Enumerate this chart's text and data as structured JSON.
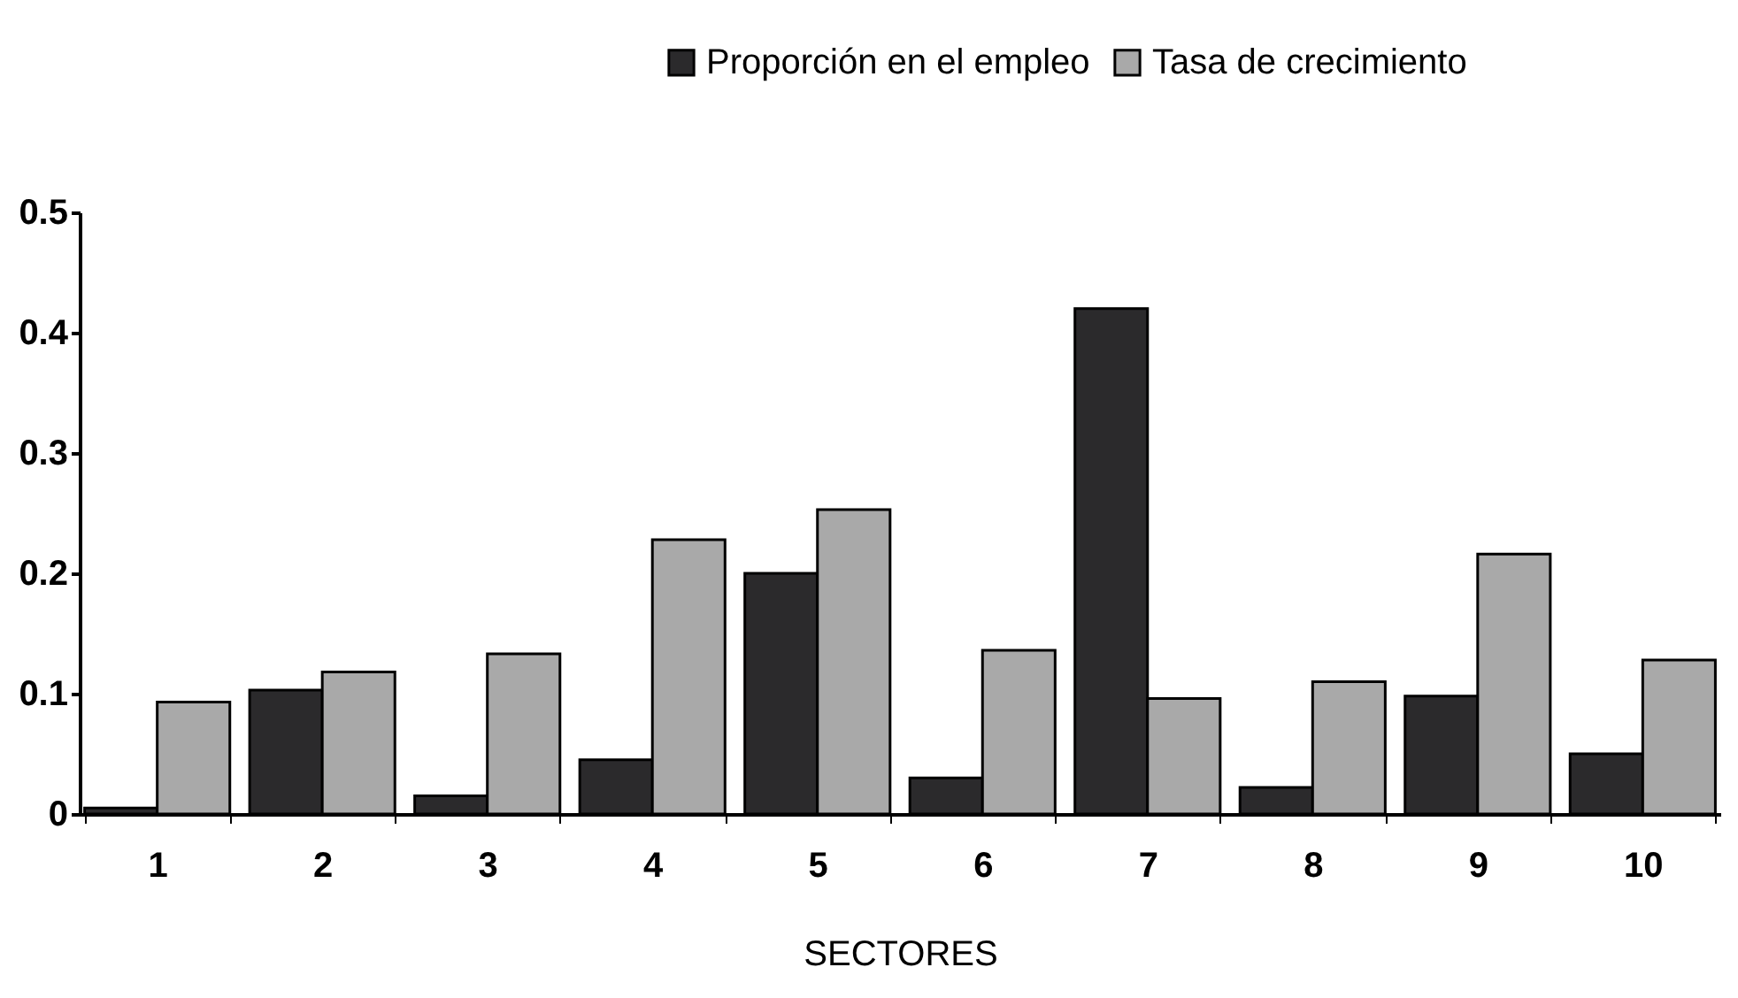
{
  "chart_data": {
    "type": "bar",
    "xlabel": "SECTORES",
    "categories": [
      "1",
      "2",
      "3",
      "4",
      "5",
      "6",
      "7",
      "8",
      "9",
      "10"
    ],
    "series": [
      {
        "name": "Proporción en el empleo",
        "color": "#2b2a2c",
        "values": [
          0.005,
          0.103,
          0.015,
          0.045,
          0.2,
          0.03,
          0.42,
          0.022,
          0.098,
          0.05
        ]
      },
      {
        "name": "Tasa de crecimiento",
        "color": "#a9a9a9",
        "values": [
          0.093,
          0.118,
          0.133,
          0.228,
          0.253,
          0.136,
          0.096,
          0.11,
          0.216,
          0.128
        ]
      }
    ],
    "ylim": [
      0,
      0.5
    ],
    "yticks": [
      {
        "value": 0,
        "label": "0"
      },
      0.1,
      0.2,
      0.3,
      0.4,
      0.5
    ],
    "grid": false,
    "legend": "top right"
  }
}
